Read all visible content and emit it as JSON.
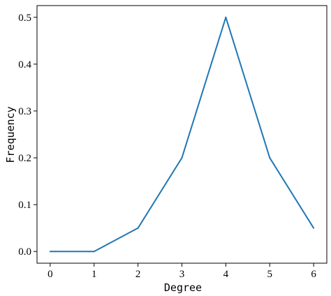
{
  "chart_data": {
    "type": "line",
    "title": "",
    "xlabel": "Degree",
    "ylabel": "Frequency",
    "x": [
      0,
      1,
      2,
      3,
      4,
      5,
      6
    ],
    "series": [
      {
        "values": [
          0.0,
          0.0,
          0.05,
          0.2,
          0.5,
          0.2,
          0.05
        ],
        "color": "#1f77b4"
      }
    ],
    "xlim": [
      -0.3,
      6.3
    ],
    "ylim": [
      -0.025,
      0.525
    ],
    "xticks": [
      0,
      1,
      2,
      3,
      4,
      5,
      6
    ],
    "xtick_labels": [
      "0",
      "1",
      "2",
      "3",
      "4",
      "5",
      "6"
    ],
    "yticks": [
      0.0,
      0.1,
      0.2,
      0.3,
      0.4,
      0.5
    ],
    "ytick_labels": [
      "0.0",
      "0.1",
      "0.2",
      "0.3",
      "0.4",
      "0.5"
    ],
    "grid": false,
    "legend": "none"
  }
}
